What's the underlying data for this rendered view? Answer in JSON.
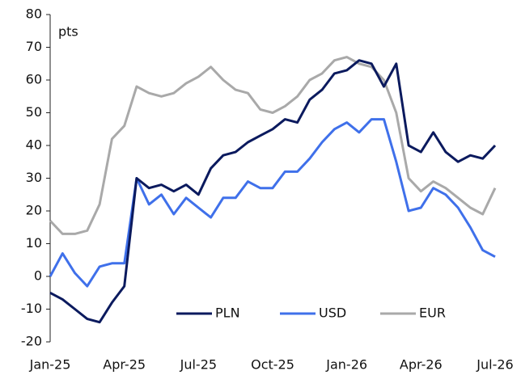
{
  "chart_data": {
    "type": "line",
    "annotation": "pts",
    "x": [
      0,
      0.5,
      1,
      1.5,
      2,
      2.5,
      3,
      3.5,
      4,
      4.5,
      5,
      5.5,
      6,
      6.5,
      7,
      7.5,
      8,
      8.5,
      9,
      9.5,
      10,
      10.5,
      11,
      11.5,
      12,
      12.5,
      13,
      13.5,
      14,
      14.5,
      15,
      15.5,
      16,
      16.5,
      17,
      17.5,
      18
    ],
    "series": [
      {
        "name": "PLN",
        "color": "#0b1a5e",
        "values": [
          -5,
          -7,
          -10,
          -13,
          -14,
          -8,
          -3,
          30,
          27,
          28,
          26,
          28,
          25,
          33,
          37,
          38,
          41,
          43,
          45,
          48,
          47,
          54,
          57,
          62,
          63,
          66,
          65,
          58,
          65,
          40,
          38,
          44,
          38,
          35,
          37,
          36,
          40
        ]
      },
      {
        "name": "USD",
        "color": "#3f70ea",
        "values": [
          0,
          7,
          1,
          -3,
          3,
          4,
          4,
          30,
          22,
          25,
          19,
          24,
          21,
          18,
          24,
          24,
          29,
          27,
          27,
          32,
          32,
          36,
          41,
          45,
          47,
          44,
          48,
          48,
          35,
          20,
          21,
          27,
          25,
          21,
          15,
          8,
          6
        ]
      },
      {
        "name": "EUR",
        "color": "#a9a9a9",
        "values": [
          17,
          13,
          13,
          14,
          22,
          42,
          46,
          58,
          56,
          55,
          56,
          59,
          61,
          64,
          60,
          57,
          56,
          51,
          50,
          52,
          55,
          60,
          62,
          66,
          67,
          65,
          64,
          60,
          50,
          30,
          26,
          29,
          27,
          24,
          21,
          19,
          27
        ]
      }
    ],
    "xlim": [
      0,
      18
    ],
    "xticks": [
      {
        "value": 0,
        "label": "Jan-25"
      },
      {
        "value": 3,
        "label": "Apr-25"
      },
      {
        "value": 6,
        "label": "Jul-25"
      },
      {
        "value": 9,
        "label": "Oct-25"
      },
      {
        "value": 12,
        "label": "Jan-26"
      },
      {
        "value": 15,
        "label": "Apr-26"
      },
      {
        "value": 18,
        "label": "Jul-26"
      }
    ],
    "ylim": [
      -20,
      80
    ],
    "yticks": [
      -20,
      -10,
      0,
      10,
      20,
      30,
      40,
      50,
      60,
      70,
      80
    ]
  }
}
